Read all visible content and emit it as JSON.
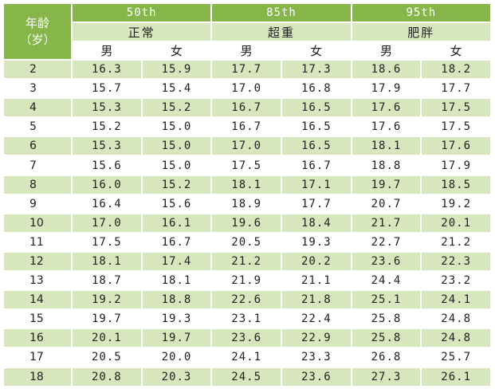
{
  "header": {
    "age_line1": "年龄",
    "age_line2": "（岁）",
    "percentiles": [
      "50th",
      "85th",
      "95th"
    ],
    "categories": [
      "正常",
      "超重",
      "肥胖"
    ],
    "sexes": [
      "男",
      "女",
      "男",
      "女",
      "男",
      "女"
    ]
  },
  "rows": [
    {
      "age": "2",
      "vals": [
        "16.3",
        "15.9",
        "17.7",
        "17.3",
        "18.6",
        "18.2"
      ]
    },
    {
      "age": "3",
      "vals": [
        "15.7",
        "15.4",
        "17.0",
        "16.8",
        "17.9",
        "17.7"
      ]
    },
    {
      "age": "4",
      "vals": [
        "15.3",
        "15.2",
        "16.7",
        "16.5",
        "17.6",
        "17.5"
      ]
    },
    {
      "age": "5",
      "vals": [
        "15.2",
        "15.0",
        "16.7",
        "16.5",
        "17.6",
        "17.5"
      ]
    },
    {
      "age": "6",
      "vals": [
        "15.3",
        "15.0",
        "17.0",
        "16.5",
        "18.1",
        "17.6"
      ]
    },
    {
      "age": "7",
      "vals": [
        "15.6",
        "15.0",
        "17.5",
        "16.7",
        "18.8",
        "17.9"
      ]
    },
    {
      "age": "8",
      "vals": [
        "16.0",
        "15.2",
        "18.1",
        "17.1",
        "19.7",
        "18.5"
      ]
    },
    {
      "age": "9",
      "vals": [
        "16.4",
        "15.6",
        "18.9",
        "17.7",
        "20.7",
        "19.2"
      ]
    },
    {
      "age": "10",
      "vals": [
        "17.0",
        "16.1",
        "19.6",
        "18.4",
        "21.7",
        "20.1"
      ]
    },
    {
      "age": "11",
      "vals": [
        "17.5",
        "16.7",
        "20.5",
        "19.3",
        "22.7",
        "21.2"
      ]
    },
    {
      "age": "12",
      "vals": [
        "18.1",
        "17.4",
        "21.2",
        "20.2",
        "23.6",
        "22.3"
      ]
    },
    {
      "age": "13",
      "vals": [
        "18.7",
        "18.1",
        "21.9",
        "21.1",
        "24.4",
        "23.2"
      ]
    },
    {
      "age": "14",
      "vals": [
        "19.2",
        "18.8",
        "22.6",
        "21.8",
        "25.1",
        "24.1"
      ]
    },
    {
      "age": "15",
      "vals": [
        "19.7",
        "19.3",
        "23.1",
        "22.4",
        "25.8",
        "24.8"
      ]
    },
    {
      "age": "16",
      "vals": [
        "20.1",
        "19.7",
        "23.6",
        "22.9",
        "25.8",
        "24.8"
      ]
    },
    {
      "age": "17",
      "vals": [
        "20.5",
        "20.0",
        "24.1",
        "23.3",
        "26.8",
        "25.7"
      ]
    },
    {
      "age": "18",
      "vals": [
        "20.8",
        "20.3",
        "24.5",
        "23.6",
        "27.3",
        "26.1"
      ]
    }
  ]
}
